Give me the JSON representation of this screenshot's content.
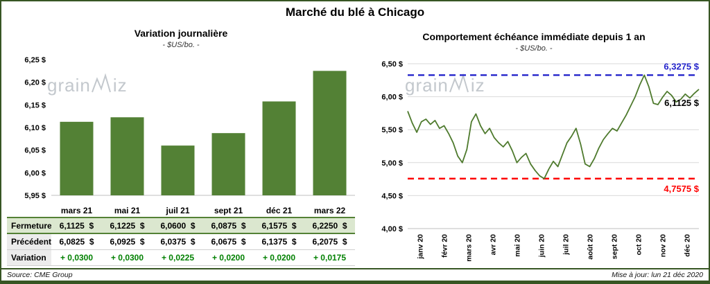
{
  "page": {
    "title": "Marché du blé à Chicago",
    "watermark": {
      "prefix": "grain",
      "suffix": "iz"
    },
    "footer": {
      "source": "Source: CME Group",
      "updated": "Mise à jour: lun 21 déc 2020"
    }
  },
  "colors": {
    "frame_green": "#375623",
    "bar_green": "#538135",
    "line_green": "#4e7a2d",
    "variation_green": "#008000",
    "max_blue": "#2323cb",
    "min_red": "#fe0000",
    "fermeture_row_bg": "#dbe7cf",
    "grid_gray": "#d9d9d9"
  },
  "chart_data": [
    {
      "name": "variation_journaliere",
      "type": "bar",
      "title": "Variation journalière",
      "subtitle": "- $US/bo. -",
      "categories": [
        "mars 21",
        "mai 21",
        "juil 21",
        "sept 21",
        "déc 21",
        "mars 22"
      ],
      "values": [
        6.1125,
        6.1225,
        6.06,
        6.0875,
        6.1575,
        6.225
      ],
      "ylim": [
        5.95,
        6.25
      ],
      "ytick_step": 0.05,
      "ytick_labels": [
        "5,95 $",
        "6,00 $",
        "6,05 $",
        "6,10 $",
        "6,15 $",
        "6,20 $",
        "6,25 $"
      ],
      "grid": false,
      "legend": "none"
    },
    {
      "name": "comportement_echeance_immediate",
      "type": "line",
      "title": "Comportement échéance immédiate depuis 1 an",
      "subtitle": "- $US/bo. -",
      "x_labels": [
        "janv 20",
        "févr 20",
        "mars 20",
        "avr 20",
        "mai 20",
        "juin 20",
        "juil 20",
        "août 20",
        "sept 20",
        "oct 20",
        "nov 20",
        "déc 20"
      ],
      "values": [
        5.78,
        5.6,
        5.46,
        5.62,
        5.66,
        5.58,
        5.64,
        5.52,
        5.56,
        5.44,
        5.3,
        5.1,
        5.0,
        5.2,
        5.62,
        5.74,
        5.56,
        5.44,
        5.52,
        5.38,
        5.3,
        5.24,
        5.32,
        5.18,
        5.0,
        5.08,
        5.14,
        4.98,
        4.88,
        4.8,
        4.7575,
        4.9,
        5.02,
        4.94,
        5.12,
        5.3,
        5.4,
        5.52,
        5.28,
        4.98,
        4.94,
        5.06,
        5.22,
        5.35,
        5.44,
        5.52,
        5.48,
        5.6,
        5.72,
        5.86,
        6.0,
        6.18,
        6.3275,
        6.15,
        5.9,
        5.88,
        5.99,
        6.08,
        6.02,
        5.92,
        5.96,
        6.04,
        5.98,
        6.05,
        6.1125
      ],
      "ylim": [
        4.0,
        6.5
      ],
      "ytick_step": 0.5,
      "ytick_labels": [
        "4,00 $",
        "4,50 $",
        "5,00 $",
        "5,50 $",
        "6,00 $",
        "6,50 $"
      ],
      "max_line": {
        "value": 6.3275,
        "label": "6,3275 $"
      },
      "min_line": {
        "value": 4.7575,
        "label": "4,7575 $"
      },
      "last_label": "6,1125 $",
      "grid": true,
      "legend": "none"
    }
  ],
  "table": {
    "headers": [
      "mars 21",
      "mai 21",
      "juil 21",
      "sept 21",
      "déc 21",
      "mars 22"
    ],
    "rows": [
      {
        "label": "Fermeture",
        "values": [
          "6,1125  $",
          "6,1225  $",
          "6,0600  $",
          "6,0875  $",
          "6,1575  $",
          "6,2250  $"
        ]
      },
      {
        "label": "Précédent",
        "values": [
          "6,0825  $",
          "6,0925  $",
          "6,0375  $",
          "6,0675  $",
          "6,1375  $",
          "6,2075  $"
        ]
      },
      {
        "label": "Variation",
        "values": [
          "+ 0,0300",
          "+ 0,0300",
          "+ 0,0225",
          "+ 0,0200",
          "+ 0,0200",
          "+ 0,0175"
        ]
      }
    ]
  }
}
